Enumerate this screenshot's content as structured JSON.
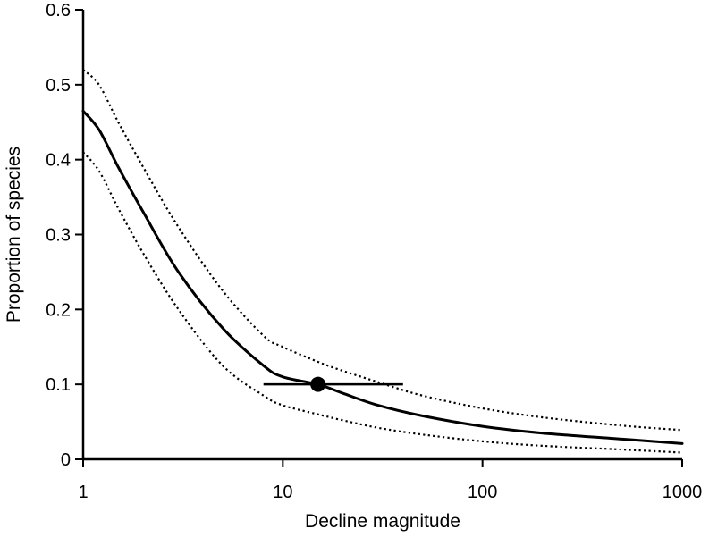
{
  "chart_data": {
    "type": "line",
    "title": "",
    "xlabel": "Decline magnitude",
    "ylabel": "Proportion of species",
    "x_scale": "log",
    "xlim": [
      1,
      1000
    ],
    "ylim": [
      0,
      0.6
    ],
    "x_ticks": [
      1,
      10,
      100,
      1000
    ],
    "x_tick_labels": [
      "1",
      "10",
      "100",
      "1000"
    ],
    "y_ticks": [
      0,
      0.1,
      0.2,
      0.3,
      0.4,
      0.5,
      0.6
    ],
    "y_tick_labels": [
      "0",
      "0.1",
      "0.2",
      "0.3",
      "0.4",
      "0.5",
      "0.6"
    ],
    "grid": false,
    "legend": "none",
    "x": [
      1,
      1.2,
      1.5,
      2,
      3,
      5,
      8,
      10,
      15,
      20,
      30,
      50,
      100,
      200,
      500,
      1000
    ],
    "series": [
      {
        "style": "solid",
        "values": [
          0.465,
          0.44,
          0.39,
          0.33,
          0.25,
          0.175,
          0.125,
          0.11,
          0.1,
          0.088,
          0.072,
          0.058,
          0.044,
          0.035,
          0.027,
          0.021
        ]
      },
      {
        "style": "dotted",
        "values": [
          0.52,
          0.5,
          0.45,
          0.39,
          0.31,
          0.225,
          0.165,
          0.15,
          0.13,
          0.118,
          0.103,
          0.085,
          0.068,
          0.056,
          0.045,
          0.039
        ]
      },
      {
        "style": "dotted",
        "values": [
          0.41,
          0.385,
          0.335,
          0.275,
          0.2,
          0.125,
          0.085,
          0.072,
          0.06,
          0.052,
          0.042,
          0.033,
          0.024,
          0.018,
          0.013,
          0.009
        ]
      }
    ],
    "highlight_point": {
      "x": 15,
      "y": 0.1
    },
    "highlight_range": {
      "x_low": 8,
      "x_high": 40,
      "y": 0.1
    },
    "colors": {
      "line": "#000000",
      "background": "#ffffff"
    }
  }
}
